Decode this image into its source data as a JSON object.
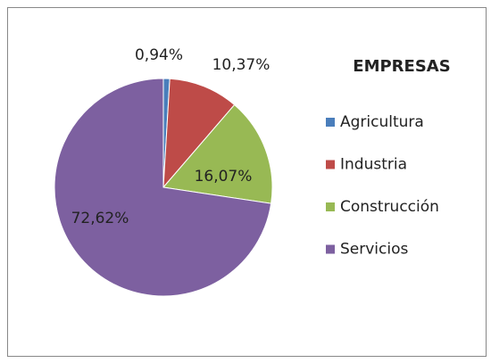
{
  "chart_data": {
    "type": "pie",
    "title": "EMPRESAS",
    "categories": [
      "Agricultura",
      "Industria",
      "Construcción",
      "Servicios"
    ],
    "values": [
      0.94,
      10.37,
      16.07,
      72.62
    ],
    "value_labels": [
      "0,94%",
      "10,37%",
      "16,07%",
      "72,62%"
    ],
    "colors": [
      "#4a7ebb",
      "#be4b48",
      "#98b954",
      "#7d60a0"
    ],
    "legend": "right"
  }
}
